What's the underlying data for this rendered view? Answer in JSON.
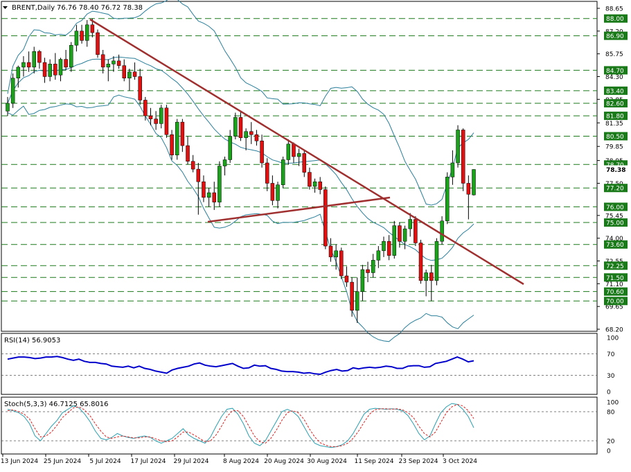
{
  "header": {
    "symbol_label": "BRENT,Daily",
    "ohlc_text": "76.76 78.40 76.72 78.38"
  },
  "rsi": {
    "label": "RSI(14) 56.9053",
    "levels": [
      0,
      30,
      70,
      100
    ],
    "values": [
      60,
      62,
      64,
      64,
      63,
      61,
      62,
      64,
      64,
      65,
      63,
      60,
      58,
      60,
      56,
      54,
      54,
      52,
      51,
      47,
      46,
      45,
      47,
      44,
      47,
      43,
      41,
      38,
      36,
      34,
      40,
      43,
      45,
      47,
      51,
      53,
      49,
      47,
      46,
      48,
      50,
      52,
      47,
      43,
      44,
      49,
      47,
      48,
      43,
      41,
      38,
      37,
      37,
      36,
      34,
      35,
      33,
      32,
      36,
      39,
      41,
      38,
      39,
      44,
      42,
      44,
      45,
      44,
      45,
      47,
      46,
      43,
      43,
      47,
      48,
      48,
      45,
      46,
      52,
      54,
      56,
      60,
      64,
      60,
      55,
      57
    ]
  },
  "stoch": {
    "label": "Stoch(5,3,3) 46.7125 65.8016",
    "levels": [
      0,
      20,
      80,
      100
    ],
    "main": [
      85,
      82,
      78,
      70,
      55,
      30,
      20,
      35,
      50,
      62,
      78,
      85,
      92,
      88,
      76,
      60,
      40,
      25,
      22,
      27,
      35,
      30,
      27,
      25,
      28,
      30,
      27,
      20,
      15,
      20,
      25,
      35,
      45,
      32,
      25,
      20,
      15,
      28,
      50,
      70,
      85,
      87,
      75,
      55,
      30,
      15,
      10,
      20,
      40,
      60,
      80,
      85,
      80,
      70,
      50,
      30,
      15,
      10,
      8,
      6,
      8,
      12,
      20,
      35,
      55,
      75,
      85,
      87,
      86,
      85,
      86,
      85,
      82,
      72,
      55,
      35,
      22,
      30,
      55,
      78,
      90,
      97,
      95,
      85,
      70,
      47
    ],
    "signal": [
      82,
      84,
      80,
      75,
      65,
      45,
      28,
      30,
      38,
      52,
      68,
      78,
      88,
      90,
      84,
      72,
      55,
      40,
      28,
      25,
      28,
      30,
      28,
      26,
      26,
      28,
      28,
      24,
      20,
      18,
      20,
      28,
      38,
      38,
      32,
      25,
      18,
      20,
      32,
      50,
      70,
      82,
      82,
      70,
      50,
      30,
      18,
      15,
      25,
      42,
      62,
      78,
      82,
      78,
      65,
      45,
      28,
      16,
      11,
      8,
      8,
      10,
      15,
      25,
      40,
      58,
      75,
      84,
      86,
      86,
      85,
      86,
      84,
      78,
      68,
      50,
      35,
      28,
      38,
      58,
      78,
      90,
      95,
      92,
      82,
      66
    ]
  },
  "price_levels": [
    "88.00",
    "86.90",
    "84.70",
    "83.40",
    "82.60",
    "81.80",
    "80.50",
    "78.70",
    "77.20",
    "76.00",
    "75.00",
    "73.60",
    "72.25",
    "71.50",
    "70.60",
    "70.00"
  ],
  "axis_ticks": [
    "88.65",
    "87.20",
    "85.75",
    "84.30",
    "82.85",
    "81.35",
    "79.85",
    "78.95",
    "77.50",
    "75.45",
    "74.00",
    "72.55",
    "71.10",
    "69.65",
    "68.20"
  ],
  "current_price": "78.38",
  "date_labels": [
    "13 Jun 2024",
    "25 Jun 2024",
    "5 Jul 2024",
    "17 Jul 2024",
    "29 Jul 2024",
    "8 Aug 2024",
    "20 Aug 2024",
    "30 Aug 2024",
    "11 Sep 2024",
    "23 Sep 2024",
    "3 Oct 2024"
  ],
  "colors": {
    "bull": "#1aa31a",
    "bear": "#e01010",
    "trendline": "#a03030",
    "bands": "#2a7f9a",
    "rsi": "#0000cc",
    "stoch_main": "#2aa0b0",
    "stoch_signal": "#e02020",
    "level_line": "#1a7a1a"
  },
  "chart_data": {
    "type": "candlestick",
    "symbol": "BRENT",
    "timeframe": "Daily",
    "candles": [
      [
        82.1,
        83.0,
        81.8,
        82.6
      ],
      [
        82.6,
        84.5,
        82.3,
        84.2
      ],
      [
        84.2,
        85.0,
        83.6,
        84.9
      ],
      [
        84.9,
        85.6,
        84.3,
        85.2
      ],
      [
        85.2,
        85.9,
        84.6,
        84.9
      ],
      [
        84.9,
        86.2,
        84.5,
        85.9
      ],
      [
        85.9,
        86.0,
        84.8,
        85.2
      ],
      [
        85.2,
        85.5,
        83.9,
        84.3
      ],
      [
        84.3,
        85.4,
        84.0,
        85.1
      ],
      [
        85.1,
        85.8,
        84.1,
        84.4
      ],
      [
        84.4,
        85.5,
        84.0,
        85.4
      ],
      [
        85.4,
        86.0,
        84.7,
        84.9
      ],
      [
        84.9,
        86.5,
        84.6,
        86.3
      ],
      [
        86.3,
        87.6,
        85.9,
        87.2
      ],
      [
        87.2,
        87.6,
        86.4,
        86.6
      ],
      [
        86.6,
        87.9,
        86.2,
        87.6
      ],
      [
        87.6,
        88.0,
        86.8,
        87.1
      ],
      [
        87.1,
        87.3,
        85.5,
        85.7
      ],
      [
        85.7,
        86.0,
        84.5,
        84.9
      ],
      [
        84.9,
        85.4,
        84.0,
        85.1
      ],
      [
        85.1,
        85.6,
        84.6,
        85.3
      ],
      [
        85.3,
        85.7,
        84.8,
        85.0
      ],
      [
        85.0,
        85.4,
        84.0,
        84.2
      ],
      [
        84.2,
        84.8,
        83.4,
        84.6
      ],
      [
        84.6,
        85.2,
        84.1,
        84.3
      ],
      [
        84.3,
        84.8,
        82.5,
        82.8
      ],
      [
        82.8,
        83.0,
        81.5,
        81.8
      ],
      [
        81.8,
        82.3,
        81.2,
        81.6
      ],
      [
        81.6,
        82.1,
        80.9,
        81.3
      ],
      [
        81.3,
        82.5,
        81.0,
        82.3
      ],
      [
        82.3,
        82.5,
        80.4,
        80.6
      ],
      [
        80.6,
        80.9,
        79.0,
        79.3
      ],
      [
        79.3,
        81.6,
        79.0,
        81.4
      ],
      [
        81.4,
        81.6,
        79.5,
        79.9
      ],
      [
        79.9,
        80.5,
        78.7,
        78.9
      ],
      [
        78.9,
        79.3,
        78.2,
        78.4
      ],
      [
        78.4,
        78.8,
        75.5,
        77.6
      ],
      [
        77.6,
        78.0,
        76.3,
        76.6
      ],
      [
        76.6,
        77.2,
        76.0,
        76.9
      ],
      [
        76.9,
        77.6,
        75.8,
        76.3
      ],
      [
        76.3,
        78.9,
        76.0,
        78.6
      ],
      [
        78.6,
        79.2,
        78.0,
        79.0
      ],
      [
        79.0,
        80.9,
        78.8,
        80.5
      ],
      [
        80.5,
        82.0,
        80.3,
        81.7
      ],
      [
        81.7,
        82.1,
        80.2,
        80.4
      ],
      [
        80.4,
        81.0,
        79.6,
        80.8
      ],
      [
        80.8,
        81.4,
        80.0,
        80.6
      ],
      [
        80.6,
        80.9,
        79.9,
        80.2
      ],
      [
        80.2,
        80.6,
        78.5,
        78.8
      ],
      [
        78.8,
        79.1,
        77.0,
        77.5
      ],
      [
        77.5,
        78.0,
        76.1,
        76.4
      ],
      [
        76.4,
        77.6,
        75.9,
        77.4
      ],
      [
        77.4,
        79.2,
        77.2,
        79.0
      ],
      [
        79.0,
        80.3,
        78.7,
        80.0
      ],
      [
        80.0,
        80.1,
        78.8,
        79.2
      ],
      [
        79.2,
        79.7,
        78.6,
        79.4
      ],
      [
        79.4,
        79.6,
        77.9,
        78.2
      ],
      [
        78.2,
        78.5,
        77.1,
        77.3
      ],
      [
        77.3,
        77.8,
        76.9,
        77.6
      ],
      [
        77.6,
        77.9,
        76.8,
        77.1
      ],
      [
        77.1,
        77.3,
        73.3,
        73.5
      ],
      [
        73.5,
        74.0,
        72.5,
        72.8
      ],
      [
        72.8,
        73.6,
        72.0,
        73.2
      ],
      [
        73.2,
        73.4,
        71.4,
        71.6
      ],
      [
        71.6,
        72.2,
        70.9,
        71.2
      ],
      [
        71.2,
        71.5,
        69.0,
        69.4
      ],
      [
        69.4,
        71.5,
        68.6,
        70.6
      ],
      [
        70.6,
        72.3,
        70.0,
        72.0
      ],
      [
        72.0,
        72.5,
        71.2,
        71.8
      ],
      [
        71.8,
        73.0,
        71.5,
        72.6
      ],
      [
        72.6,
        73.5,
        72.1,
        73.2
      ],
      [
        73.2,
        74.1,
        72.8,
        73.8
      ],
      [
        73.8,
        74.2,
        72.6,
        72.9
      ],
      [
        72.9,
        75.1,
        72.7,
        74.8
      ],
      [
        74.8,
        75.0,
        73.4,
        73.8
      ],
      [
        73.8,
        74.8,
        73.3,
        74.6
      ],
      [
        74.6,
        75.6,
        74.1,
        75.2
      ],
      [
        75.2,
        75.4,
        73.5,
        73.7
      ],
      [
        73.7,
        73.9,
        71.1,
        71.3
      ],
      [
        71.3,
        72.0,
        70.3,
        71.8
      ],
      [
        71.8,
        72.3,
        70.0,
        71.3
      ],
      [
        71.3,
        74.0,
        71.0,
        73.8
      ],
      [
        73.8,
        75.4,
        73.6,
        75.1
      ],
      [
        75.1,
        78.2,
        74.9,
        77.9
      ],
      [
        77.9,
        79.6,
        77.4,
        78.8
      ],
      [
        78.8,
        81.2,
        78.5,
        80.9
      ],
      [
        80.9,
        81.0,
        77.0,
        77.5
      ],
      [
        77.5,
        78.0,
        75.2,
        76.8
      ],
      [
        76.76,
        78.4,
        76.72,
        78.38
      ]
    ],
    "ylim": [
      68.2,
      88.65
    ]
  }
}
